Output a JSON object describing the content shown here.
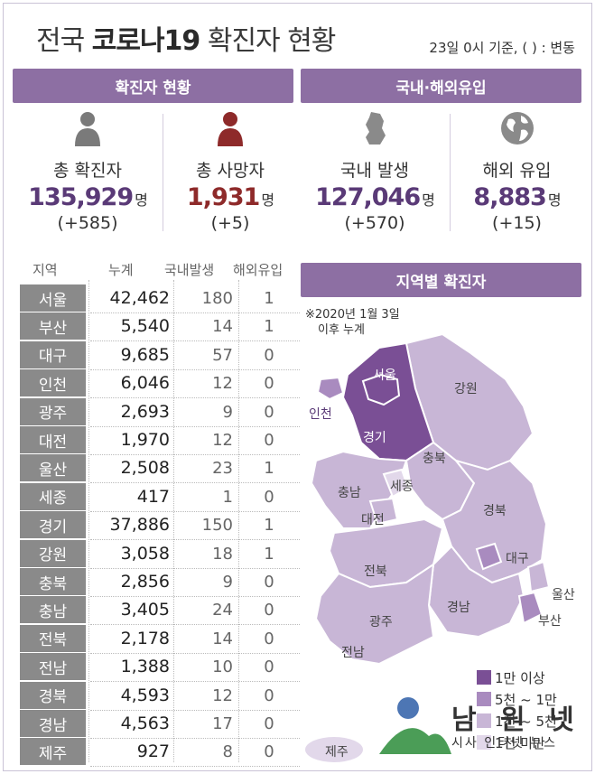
{
  "header": {
    "title_prefix": "전국",
    "title_bold": "코로나19",
    "title_suffix": "확진자 현황",
    "basis": "23일 0시 기준, ( ) : 변동"
  },
  "bands": {
    "left": "확진자 현황",
    "right": "국내·해외유입",
    "map": "지역별 확진자"
  },
  "stats": [
    {
      "label": "총 확진자",
      "value": "135,929",
      "unit": "명",
      "change": "(+585)",
      "icon": "person-icon"
    },
    {
      "label": "총 사망자",
      "value": "1,931",
      "unit": "명",
      "change": "(+5)",
      "icon": "person-icon",
      "accent": "#8e2a2a"
    },
    {
      "label": "국내 발생",
      "value": "127,046",
      "unit": "명",
      "change": "(+570)",
      "icon": "korea-map-icon"
    },
    {
      "label": "해외 유입",
      "value": "8,883",
      "unit": "명",
      "change": "(+15)",
      "icon": "globe-icon"
    }
  ],
  "table": {
    "headers": [
      "지역",
      "누계",
      "국내발생",
      "해외유입"
    ],
    "rows": [
      [
        "서울",
        "42,462",
        "180",
        "1"
      ],
      [
        "부산",
        "5,540",
        "14",
        "1"
      ],
      [
        "대구",
        "9,685",
        "57",
        "0"
      ],
      [
        "인천",
        "6,046",
        "12",
        "0"
      ],
      [
        "광주",
        "2,693",
        "9",
        "0"
      ],
      [
        "대전",
        "1,970",
        "12",
        "0"
      ],
      [
        "울산",
        "2,508",
        "23",
        "1"
      ],
      [
        "세종",
        "417",
        "1",
        "0"
      ],
      [
        "경기",
        "37,886",
        "150",
        "1"
      ],
      [
        "강원",
        "3,058",
        "18",
        "1"
      ],
      [
        "충북",
        "2,856",
        "9",
        "0"
      ],
      [
        "충남",
        "3,405",
        "24",
        "0"
      ],
      [
        "전북",
        "2,178",
        "14",
        "0"
      ],
      [
        "전남",
        "1,388",
        "10",
        "0"
      ],
      [
        "경북",
        "4,593",
        "12",
        "0"
      ],
      [
        "경남",
        "4,563",
        "17",
        "0"
      ],
      [
        "제주",
        "927",
        "8",
        "0"
      ]
    ]
  },
  "map": {
    "note_line1": "※2020년 1월 3일",
    "note_line2": "이후 누계",
    "labels": [
      "서울",
      "인천",
      "경기",
      "강원",
      "충북",
      "충남",
      "세종",
      "대전",
      "경북",
      "대구",
      "전북",
      "울산",
      "부산",
      "경남",
      "광주",
      "전남",
      "제주"
    ],
    "legend": [
      {
        "label": "1만 이상",
        "color": "#7a4f95"
      },
      {
        "label": "5천 ~ 1만",
        "color": "#a98bbf"
      },
      {
        "label": "1천 ~ 5천",
        "color": "#c8b6d6"
      },
      {
        "label": "1천 미만",
        "color": "#e2d8ea"
      }
    ]
  },
  "watermark": {
    "name": "남 원 넷",
    "sub": "시사 인터넷 뉴스"
  },
  "colors": {
    "band": "#8d6fa3",
    "region_cell": "#8a8a8a",
    "deaths": "#8e2a2a",
    "value": "#5a3a77"
  }
}
